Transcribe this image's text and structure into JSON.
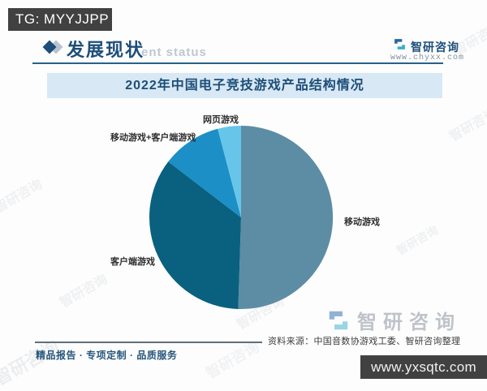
{
  "overlay": {
    "tg_badge": "TG: MYYJJPP",
    "site_badge": "www.yxsqtc.com"
  },
  "header": {
    "section_title": "发展现状",
    "watermark_echo": "ent status",
    "brand_name": "智研咨询",
    "brand_url": "www.chyxx.com"
  },
  "chart_data": {
    "type": "pie",
    "title": "2022年中国电子竞技游戏产品结构情况",
    "categories": [
      "移动游戏",
      "客户端游戏",
      "移动游戏+客户端游戏",
      "网页游戏"
    ],
    "values": [
      50.5,
      34.9,
      10.5,
      4.1
    ],
    "colors": [
      "#5d8da4",
      "#0a607f",
      "#1b8fc6",
      "#68c5ea"
    ],
    "start_angle_deg": 0,
    "direction": "clockwise",
    "legend": "none",
    "data_labels": "category-names-outside"
  },
  "watermark": {
    "logo_text": "智研咨询"
  },
  "footer": {
    "source": "资料来源：中国音数协游戏工委、智研咨询整理",
    "tagline": "精品报告 · 专项定制 · 品质服务"
  }
}
